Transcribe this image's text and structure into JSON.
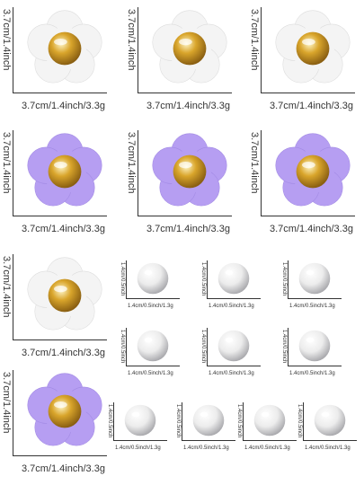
{
  "colors": {
    "white_flower": "#f4f4f4",
    "purple_flower": "#b69ef2",
    "gold": "#d9a52b",
    "pearl": "#ececec",
    "text": "#333333"
  },
  "flowers": [
    {
      "variant": "white",
      "height_label": "3.7cm/1.4inch",
      "width_label": "3.7cm/1.4inch/3.3g"
    },
    {
      "variant": "white",
      "height_label": "3.7cm/1.4inch",
      "width_label": "3.7cm/1.4inch/3.3g"
    },
    {
      "variant": "white",
      "height_label": "3.7cm/1.4inch",
      "width_label": "3.7cm/1.4inch/3.3g"
    },
    {
      "variant": "purple",
      "height_label": "3.7cm/1.4inch",
      "width_label": "3.7cm/1.4inch/3.3g"
    },
    {
      "variant": "purple",
      "height_label": "3.7cm/1.4inch",
      "width_label": "3.7cm/1.4inch/3.3g"
    },
    {
      "variant": "purple",
      "height_label": "3.7cm/1.4inch",
      "width_label": "3.7cm/1.4inch/3.3g"
    },
    {
      "variant": "white",
      "height_label": "3.7cm/1.4inch",
      "width_label": "3.7cm/1.4inch/3.3g"
    },
    {
      "variant": "purple",
      "height_label": "3.7cm/1.4inch",
      "width_label": "3.7cm/1.4inch/3.3g"
    }
  ],
  "pearls": [
    {
      "height_label": "1.4cm/0.5inch",
      "width_label": "1.4cm/0.5inch/1.3g"
    },
    {
      "height_label": "1.4cm/0.5inch",
      "width_label": "1.4cm/0.5inch/1.3g"
    },
    {
      "height_label": "1.4cm/0.5inch",
      "width_label": "1.4cm/0.5inch/1.3g"
    },
    {
      "height_label": "1.4cm/0.5inch",
      "width_label": "1.4cm/0.5inch/1.3g"
    },
    {
      "height_label": "1.4cm/0.5inch",
      "width_label": "1.4cm/0.5inch/1.3g"
    },
    {
      "height_label": "1.4cm/0.5inch",
      "width_label": "1.4cm/0.5inch/1.3g"
    },
    {
      "height_label": "1.4cm/0.5inch",
      "width_label": "1.4cm/0.5inch/1.3g"
    },
    {
      "height_label": "1.4cm/0.5inch",
      "width_label": "1.4cm/0.5inch/1.3g"
    },
    {
      "height_label": "1.4cm/0.5inch",
      "width_label": "1.4cm/0.5inch/1.3g"
    },
    {
      "height_label": "1.4cm/0.5inch",
      "width_label": "1.4cm/0.5inch/1.3g"
    }
  ]
}
